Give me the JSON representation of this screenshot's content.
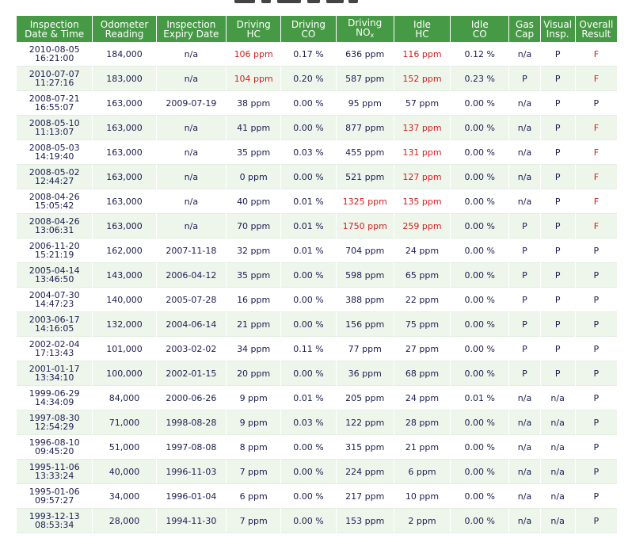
{
  "headers": {
    "date": [
      "Inspection",
      "Date & Time"
    ],
    "odometer": [
      "Odometer",
      "Reading"
    ],
    "expiry": [
      "Inspection",
      "Expiry Date"
    ],
    "driving_hc": [
      "Driving",
      "HC"
    ],
    "driving_co": [
      "Driving",
      "CO"
    ],
    "driving_nox": [
      "Driving",
      "NO",
      "x"
    ],
    "idle_hc": [
      "Idle",
      "HC"
    ],
    "idle_co": [
      "Idle",
      "CO"
    ],
    "gas_cap": [
      "Gas",
      "Cap"
    ],
    "visual": [
      "Visual",
      "Insp."
    ],
    "overall": [
      "Overall",
      "Result"
    ]
  },
  "colors": {
    "header_bg": "#479a45",
    "fail_text": "#d32020",
    "row_alt_bg": "#eef6ec",
    "text": "#1c1c50"
  },
  "rows": [
    {
      "date": "2010-08-05",
      "time": "16:21:00",
      "odometer": "184,000",
      "expiry": "n/a",
      "driving_hc": "106 ppm",
      "driving_co": "0.17 %",
      "driving_nox": "636 ppm",
      "idle_hc": "116 ppm",
      "idle_co": "0.12 %",
      "gas_cap": "n/a",
      "visual": "P",
      "overall": "F",
      "fail": [
        "driving_hc",
        "idle_hc",
        "overall"
      ]
    },
    {
      "date": "2010-07-07",
      "time": "11:27:16",
      "odometer": "183,000",
      "expiry": "n/a",
      "driving_hc": "104 ppm",
      "driving_co": "0.20 %",
      "driving_nox": "587 ppm",
      "idle_hc": "152 ppm",
      "idle_co": "0.23 %",
      "gas_cap": "P",
      "visual": "P",
      "overall": "F",
      "fail": [
        "driving_hc",
        "idle_hc",
        "overall"
      ]
    },
    {
      "date": "2008-07-21",
      "time": "16:55:07",
      "odometer": "163,000",
      "expiry": "2009-07-19",
      "driving_hc": "38 ppm",
      "driving_co": "0.00 %",
      "driving_nox": "95 ppm",
      "idle_hc": "57 ppm",
      "idle_co": "0.00 %",
      "gas_cap": "n/a",
      "visual": "P",
      "overall": "P",
      "fail": []
    },
    {
      "date": "2008-05-10",
      "time": "11:13:07",
      "odometer": "163,000",
      "expiry": "n/a",
      "driving_hc": "41 ppm",
      "driving_co": "0.00 %",
      "driving_nox": "877 ppm",
      "idle_hc": "137 ppm",
      "idle_co": "0.00 %",
      "gas_cap": "n/a",
      "visual": "P",
      "overall": "F",
      "fail": [
        "idle_hc",
        "overall"
      ]
    },
    {
      "date": "2008-05-03",
      "time": "14:19:40",
      "odometer": "163,000",
      "expiry": "n/a",
      "driving_hc": "35 ppm",
      "driving_co": "0.03 %",
      "driving_nox": "455 ppm",
      "idle_hc": "131 ppm",
      "idle_co": "0.00 %",
      "gas_cap": "n/a",
      "visual": "P",
      "overall": "F",
      "fail": [
        "idle_hc",
        "overall"
      ]
    },
    {
      "date": "2008-05-02",
      "time": "12:44:27",
      "odometer": "163,000",
      "expiry": "n/a",
      "driving_hc": "0 ppm",
      "driving_co": "0.00 %",
      "driving_nox": "521 ppm",
      "idle_hc": "127 ppm",
      "idle_co": "0.00 %",
      "gas_cap": "n/a",
      "visual": "P",
      "overall": "F",
      "fail": [
        "idle_hc",
        "overall"
      ]
    },
    {
      "date": "2008-04-26",
      "time": "15:05:42",
      "odometer": "163,000",
      "expiry": "n/a",
      "driving_hc": "40 ppm",
      "driving_co": "0.01 %",
      "driving_nox": "1325 ppm",
      "idle_hc": "135 ppm",
      "idle_co": "0.00 %",
      "gas_cap": "n/a",
      "visual": "P",
      "overall": "F",
      "fail": [
        "driving_nox",
        "idle_hc",
        "overall"
      ]
    },
    {
      "date": "2008-04-26",
      "time": "13:06:31",
      "odometer": "163,000",
      "expiry": "n/a",
      "driving_hc": "70 ppm",
      "driving_co": "0.01 %",
      "driving_nox": "1750 ppm",
      "idle_hc": "259 ppm",
      "idle_co": "0.00 %",
      "gas_cap": "P",
      "visual": "P",
      "overall": "F",
      "fail": [
        "driving_nox",
        "idle_hc",
        "overall"
      ]
    },
    {
      "date": "2006-11-20",
      "time": "15:21:19",
      "odometer": "162,000",
      "expiry": "2007-11-18",
      "driving_hc": "32 ppm",
      "driving_co": "0.01 %",
      "driving_nox": "704 ppm",
      "idle_hc": "24 ppm",
      "idle_co": "0.00 %",
      "gas_cap": "P",
      "visual": "P",
      "overall": "P",
      "fail": []
    },
    {
      "date": "2005-04-14",
      "time": "13:46:50",
      "odometer": "143,000",
      "expiry": "2006-04-12",
      "driving_hc": "35 ppm",
      "driving_co": "0.00 %",
      "driving_nox": "598 ppm",
      "idle_hc": "65 ppm",
      "idle_co": "0.00 %",
      "gas_cap": "P",
      "visual": "P",
      "overall": "P",
      "fail": []
    },
    {
      "date": "2004-07-30",
      "time": "14:47:23",
      "odometer": "140,000",
      "expiry": "2005-07-28",
      "driving_hc": "16 ppm",
      "driving_co": "0.00 %",
      "driving_nox": "388 ppm",
      "idle_hc": "22 ppm",
      "idle_co": "0.00 %",
      "gas_cap": "P",
      "visual": "P",
      "overall": "P",
      "fail": []
    },
    {
      "date": "2003-06-17",
      "time": "14:16:05",
      "odometer": "132,000",
      "expiry": "2004-06-14",
      "driving_hc": "21 ppm",
      "driving_co": "0.00 %",
      "driving_nox": "156 ppm",
      "idle_hc": "75 ppm",
      "idle_co": "0.00 %",
      "gas_cap": "P",
      "visual": "P",
      "overall": "P",
      "fail": []
    },
    {
      "date": "2002-02-04",
      "time": "17:13:43",
      "odometer": "101,000",
      "expiry": "2003-02-02",
      "driving_hc": "34 ppm",
      "driving_co": "0.11 %",
      "driving_nox": "77 ppm",
      "idle_hc": "27 ppm",
      "idle_co": "0.00 %",
      "gas_cap": "P",
      "visual": "P",
      "overall": "P",
      "fail": []
    },
    {
      "date": "2001-01-17",
      "time": "13:34:10",
      "odometer": "100,000",
      "expiry": "2002-01-15",
      "driving_hc": "20 ppm",
      "driving_co": "0.00 %",
      "driving_nox": "36 ppm",
      "idle_hc": "68 ppm",
      "idle_co": "0.00 %",
      "gas_cap": "P",
      "visual": "P",
      "overall": "P",
      "fail": []
    },
    {
      "date": "1999-06-29",
      "time": "14:34:09",
      "odometer": "84,000",
      "expiry": "2000-06-26",
      "driving_hc": "9 ppm",
      "driving_co": "0.01 %",
      "driving_nox": "205 ppm",
      "idle_hc": "24 ppm",
      "idle_co": "0.01 %",
      "gas_cap": "n/a",
      "visual": "n/a",
      "overall": "P",
      "fail": []
    },
    {
      "date": "1997-08-30",
      "time": "12:54:29",
      "odometer": "71,000",
      "expiry": "1998-08-28",
      "driving_hc": "9 ppm",
      "driving_co": "0.03 %",
      "driving_nox": "122 ppm",
      "idle_hc": "28 ppm",
      "idle_co": "0.00 %",
      "gas_cap": "n/a",
      "visual": "n/a",
      "overall": "P",
      "fail": []
    },
    {
      "date": "1996-08-10",
      "time": "09:45:20",
      "odometer": "51,000",
      "expiry": "1997-08-08",
      "driving_hc": "8 ppm",
      "driving_co": "0.00 %",
      "driving_nox": "315 ppm",
      "idle_hc": "21 ppm",
      "idle_co": "0.00 %",
      "gas_cap": "n/a",
      "visual": "n/a",
      "overall": "P",
      "fail": []
    },
    {
      "date": "1995-11-06",
      "time": "13:33:24",
      "odometer": "40,000",
      "expiry": "1996-11-03",
      "driving_hc": "7 ppm",
      "driving_co": "0.00 %",
      "driving_nox": "224 ppm",
      "idle_hc": "6 ppm",
      "idle_co": "0.00 %",
      "gas_cap": "n/a",
      "visual": "n/a",
      "overall": "P",
      "fail": []
    },
    {
      "date": "1995-01-06",
      "time": "09:57:27",
      "odometer": "34,000",
      "expiry": "1996-01-04",
      "driving_hc": "6 ppm",
      "driving_co": "0.00 %",
      "driving_nox": "217 ppm",
      "idle_hc": "10 ppm",
      "idle_co": "0.00 %",
      "gas_cap": "n/a",
      "visual": "n/a",
      "overall": "P",
      "fail": []
    },
    {
      "date": "1993-12-13",
      "time": "08:53:34",
      "odometer": "28,000",
      "expiry": "1994-11-30",
      "driving_hc": "7 ppm",
      "driving_co": "0.00 %",
      "driving_nox": "153 ppm",
      "idle_hc": "2 ppm",
      "idle_co": "0.00 %",
      "gas_cap": "n/a",
      "visual": "n/a",
      "overall": "P",
      "fail": []
    }
  ]
}
